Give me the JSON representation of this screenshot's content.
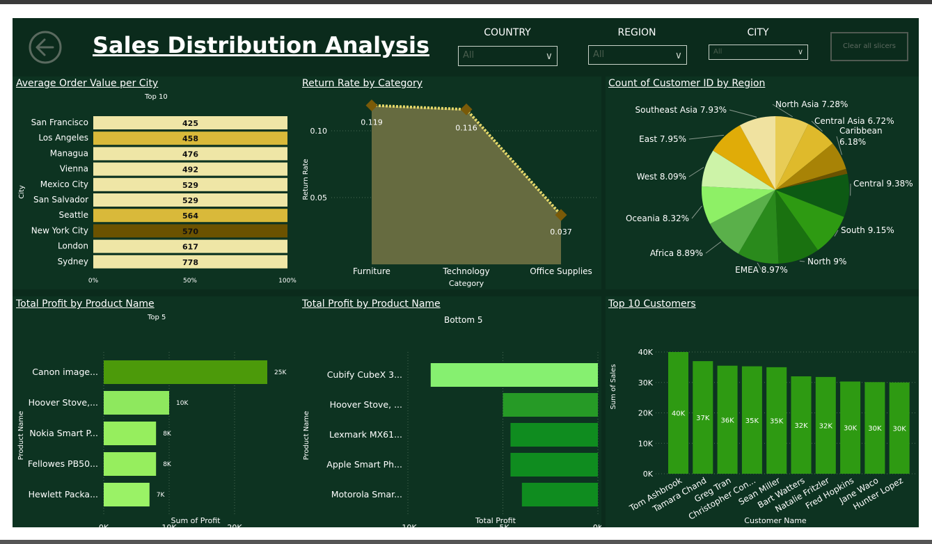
{
  "header": {
    "title": "Sales Distribution Analysis",
    "back_icon": "arrow-left-circle-icon",
    "slicers": [
      {
        "label": "COUNTRY",
        "value": "All"
      },
      {
        "label": "REGION",
        "value": "All"
      },
      {
        "label": "CITY",
        "value": "All"
      }
    ],
    "clear_label": "Clear all slicers"
  },
  "colors": {
    "background": "#0b2b1c",
    "panel": "#0d3321",
    "pale_yellow": "#efe6a6",
    "gold": "#d9b93a",
    "dark_gold": "#6b5200",
    "green": "#2e9a12",
    "light_green": "#8ef066"
  },
  "aov": {
    "title": "Average Order Value per City",
    "subtitle": "Top 10",
    "ylabel": "City",
    "ticks": [
      "0%",
      "50%",
      "100%"
    ]
  },
  "return_rate": {
    "title": "Return Rate by Category",
    "ylabel": "Return Rate",
    "xlabel": "Category",
    "yticks": [
      "0.10",
      "0.05"
    ]
  },
  "customers_region": {
    "title": "Count of Customer ID by Region"
  },
  "top5": {
    "title": "Total Profit by Product Name",
    "subtitle": "Top 5",
    "ylabel": "Product Name",
    "xlabel": "Sum of Profit",
    "ticks": [
      "0K",
      "10K",
      "20K"
    ]
  },
  "bottom5": {
    "title": "Total Profit by Product Name",
    "subtitle": "Bottom 5",
    "ylabel": "Product Name",
    "xlabel": "Total Profit",
    "ticks": [
      "-10K",
      "-5K",
      "0K"
    ]
  },
  "top_customers": {
    "title": "Top 10 Customers",
    "ylabel": "Sum of Sales",
    "xlabel": "Customer Name",
    "yticks": [
      "40K",
      "30K",
      "20K",
      "10K",
      "0K"
    ]
  },
  "chart_data": [
    {
      "type": "bar",
      "orientation": "horizontal",
      "categories": [
        "San Francisco",
        "Los Angeles",
        "Managua",
        "Vienna",
        "Mexico City",
        "San Salvador",
        "Seattle",
        "New York City",
        "London",
        "Sydney"
      ],
      "values": [
        425,
        458,
        476,
        492,
        529,
        529,
        564,
        570,
        617,
        778
      ],
      "labels": [
        "425",
        "458",
        "476",
        "492",
        "529",
        "529",
        "564",
        "570",
        "617",
        "778"
      ],
      "colors": [
        "#efe6a6",
        "#d9b93a",
        "#efe6a6",
        "#efe6a6",
        "#efe6a6",
        "#efe6a6",
        "#d9b93a",
        "#6b5200",
        "#efe6a6",
        "#efe6a6"
      ],
      "title": "Average Order Value per City",
      "subtitle": "Top 10",
      "ylabel": "City",
      "xlim": [
        0,
        100
      ]
    },
    {
      "type": "area",
      "categories": [
        "Furniture",
        "Technology",
        "Office Supplies"
      ],
      "values": [
        0.119,
        0.116,
        0.037
      ],
      "labels": [
        "0.119",
        "0.116",
        "0.037"
      ],
      "title": "Return Rate by Category",
      "xlabel": "Category",
      "ylabel": "Return Rate",
      "ylim": [
        0,
        0.125
      ],
      "yticks": [
        0.05,
        0.1
      ],
      "grid": true
    },
    {
      "type": "pie",
      "title": "Count of Customer ID by Region",
      "slices": [
        {
          "label": "North Asia 7.28%",
          "value": 7.28,
          "color": "#e8cc55"
        },
        {
          "label": "Central Asia 6.72%",
          "value": 6.72,
          "color": "#dfba2b"
        },
        {
          "label": "Caribbean 6.18%",
          "value": 6.18,
          "color": "#a88306"
        },
        {
          "label": "",
          "value": 1.1,
          "color": "#6b5200"
        },
        {
          "label": "Central 9.38%",
          "value": 9.38,
          "color": "#0d5a14"
        },
        {
          "label": "South 9.15%",
          "value": 9.15,
          "color": "#2e9a12"
        },
        {
          "label": "North 9%",
          "value": 9.0,
          "color": "#1a7210"
        },
        {
          "label": "EMEA 8.97%",
          "value": 8.97,
          "color": "#2a8a1c"
        },
        {
          "label": "Africa 8.89%",
          "value": 8.89,
          "color": "#5ab04a"
        },
        {
          "label": "Oceania 8.32%",
          "value": 8.32,
          "color": "#8ef066"
        },
        {
          "label": "West 8.09%",
          "value": 8.09,
          "color": "#cdf3a8"
        },
        {
          "label": "East 7.95%",
          "value": 7.95,
          "color": "#e0ac08"
        },
        {
          "label": "Southeast Asia 7.93%",
          "value": 7.93,
          "color": "#f0e2a0"
        }
      ]
    },
    {
      "type": "bar",
      "orientation": "horizontal",
      "title": "Total Profit by Product Name",
      "subtitle": "Top 5",
      "categories": [
        "Canon image...",
        "Hoover Stove,...",
        "Nokia Smart P...",
        "Fellowes PB50...",
        "Hewlett Packa..."
      ],
      "values": [
        25000,
        10000,
        8000,
        8000,
        7000
      ],
      "labels": [
        "25K",
        "10K",
        "8K",
        "8K",
        "7K"
      ],
      "colors": [
        "#4c9a0a",
        "#8ee85e",
        "#96ee5e",
        "#96ee5e",
        "#9af266"
      ],
      "xlabel": "Sum of Profit",
      "ylabel": "Product Name",
      "xlim": [
        0,
        28000
      ],
      "xticks": [
        0,
        10000,
        20000
      ]
    },
    {
      "type": "bar",
      "orientation": "horizontal",
      "title": "Total Profit by Product Name",
      "subtitle": "Bottom 5",
      "categories": [
        "Cubify CubeX 3...",
        "Hoover Stove, ...",
        "Lexmark MX61...",
        "Apple Smart Ph...",
        "Motorola Smar..."
      ],
      "values": [
        -8800,
        -5000,
        -4600,
        -4600,
        -4000
      ],
      "colors": [
        "#86f070",
        "#269a26",
        "#0f8c1f",
        "#0f8c1f",
        "#0f8c1f"
      ],
      "xlabel": "Total Profit",
      "ylabel": "Product Name",
      "xlim": [
        -10000,
        0
      ],
      "xticks": [
        -10000,
        -5000,
        0
      ]
    },
    {
      "type": "bar",
      "title": "Top 10 Customers",
      "categories": [
        "Tom Ashbrook",
        "Tamara Chand",
        "Greg Tran",
        "Christopher Con...",
        "Sean Miller",
        "Bart Watters",
        "Natalie Fritzler",
        "Fred Hopkins",
        "Jane Waco",
        "Hunter Lopez"
      ],
      "values": [
        40000,
        37000,
        35500,
        35300,
        35000,
        32000,
        31800,
        30300,
        30100,
        30000
      ],
      "labels": [
        "40K",
        "37K",
        "36K",
        "35K",
        "35K",
        "32K",
        "32K",
        "30K",
        "30K",
        "30K"
      ],
      "xlabel": "Customer Name",
      "ylabel": "Sum of Sales",
      "ylim": [
        0,
        40000
      ],
      "yticks": [
        0,
        10000,
        20000,
        30000,
        40000
      ],
      "grid": true
    }
  ]
}
